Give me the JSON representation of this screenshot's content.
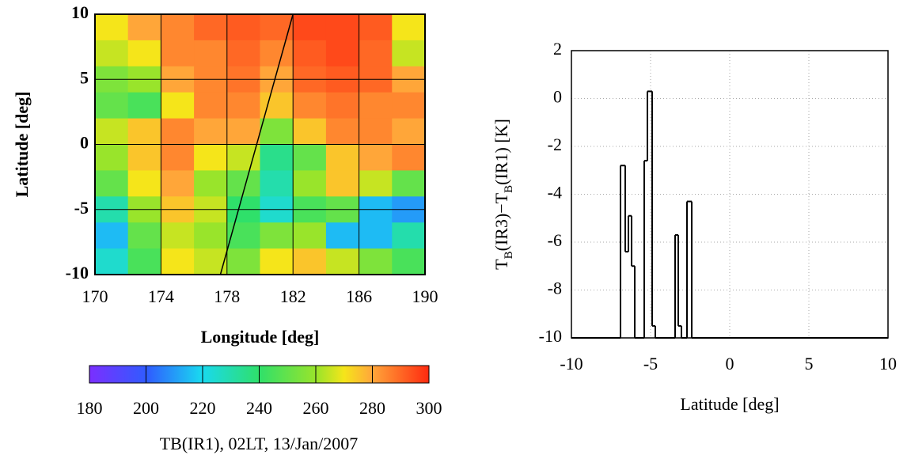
{
  "chart_data": [
    {
      "type": "heatmap",
      "xlabel": "Longitude [deg]",
      "ylabel": "Latitude [deg]",
      "xlim": [
        170,
        190
      ],
      "ylim": [
        -10,
        10
      ],
      "xticks": [
        170,
        174,
        178,
        182,
        186,
        190
      ],
      "yticks": [
        -10,
        -5,
        0,
        5,
        10
      ],
      "z": [
        [
          270,
          280,
          285,
          290,
          292,
          290,
          295,
          295,
          292,
          270
        ],
        [
          265,
          270,
          285,
          285,
          290,
          285,
          292,
          295,
          290,
          265
        ],
        [
          255,
          260,
          280,
          285,
          288,
          280,
          290,
          292,
          290,
          280
        ],
        [
          250,
          245,
          270,
          285,
          285,
          275,
          285,
          288,
          285,
          285
        ],
        [
          265,
          275,
          285,
          280,
          280,
          255,
          275,
          285,
          285,
          280
        ],
        [
          260,
          275,
          285,
          270,
          265,
          235,
          250,
          275,
          280,
          285
        ],
        [
          250,
          270,
          280,
          260,
          250,
          230,
          260,
          275,
          265,
          250
        ],
        [
          230,
          260,
          275,
          265,
          240,
          225,
          245,
          250,
          215,
          210
        ],
        [
          215,
          250,
          265,
          260,
          245,
          255,
          260,
          215,
          215,
          230
        ],
        [
          225,
          245,
          270,
          265,
          255,
          270,
          275,
          265,
          255,
          245
        ]
      ],
      "track": {
        "x": [
          177.6,
          182
        ],
        "y": [
          -10,
          10
        ]
      },
      "colormap": "jet",
      "clim": [
        180,
        300
      ],
      "cticks": [
        180,
        200,
        220,
        240,
        260,
        280,
        300
      ],
      "caption": "TB(IR1), 02LT, 13/Jan/2007"
    },
    {
      "type": "line",
      "step": "post",
      "xlabel": "Latitude [deg]",
      "ylabel_parts": [
        "T",
        "B",
        "(IR3)−T",
        "B",
        "(IR1) [K]"
      ],
      "xlim": [
        -10,
        10
      ],
      "ylim": [
        -10,
        2
      ],
      "xticks": [
        -10,
        -5,
        0,
        5,
        10
      ],
      "yticks": [
        -10,
        -8,
        -6,
        -4,
        -2,
        0,
        2
      ],
      "grid": true,
      "color": "#000000",
      "x": [
        -10,
        -6.9,
        -6.6,
        -6.4,
        -6.2,
        -6.0,
        -5.4,
        -5.2,
        -4.9,
        -4.7,
        -3.45,
        -3.25,
        -3.05,
        -2.7,
        -2.4,
        10
      ],
      "values": [
        -10,
        -2.8,
        -6.4,
        -4.9,
        -7,
        -10,
        -2.6,
        0.3,
        -9.5,
        -10,
        -5.7,
        -9.5,
        -10,
        -4.3,
        -10,
        -10
      ]
    }
  ]
}
